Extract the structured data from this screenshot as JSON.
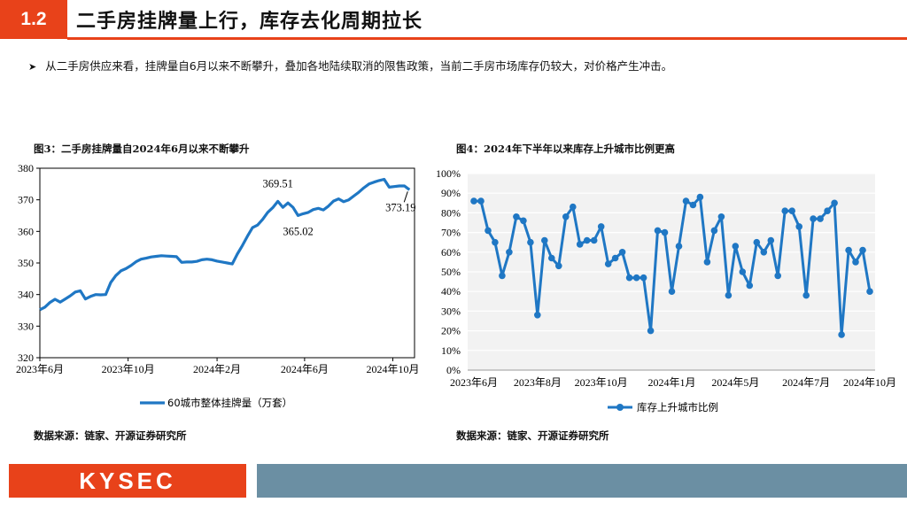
{
  "header": {
    "section_number": "1.2",
    "title": "二手房挂牌量上行，库存去化周期拉长"
  },
  "bullet": {
    "text": "从二手房供应来看，挂牌量自6月以来不断攀升，叠加各地陆续取消的限售政策，当前二手房市场库存仍较大，对价格产生冲击。"
  },
  "figure3": {
    "title": "图3：二手房挂牌量自2024年6月以来不断攀升",
    "source": "数据来源：链家、开源证券研究所"
  },
  "figure4": {
    "title": "图4：2024年下半年以来库存上升城市比例更高",
    "source": "数据来源：链家、开源证券研究所"
  },
  "footer": {
    "logo": "KYSEC"
  },
  "colors": {
    "accent": "#e8421a",
    "series": "#1f77c4",
    "footer_bar": "#6b8fa3"
  },
  "chart_data": [
    {
      "type": "line",
      "ylim": [
        320,
        380
      ],
      "yticks": [
        320,
        330,
        340,
        350,
        360,
        370,
        380
      ],
      "xlim": [
        "2023-06-01",
        "2024-10-31"
      ],
      "xticks": [
        {
          "date": "2023-06-01",
          "label": "2023年6月"
        },
        {
          "date": "2023-10-01",
          "label": "2023年10月"
        },
        {
          "date": "2024-02-01",
          "label": "2024年2月"
        },
        {
          "date": "2024-06-01",
          "label": "2024年6月"
        },
        {
          "date": "2024-10-01",
          "label": "2024年10月"
        }
      ],
      "grid": false,
      "legend_position": "bottom",
      "series": [
        {
          "name": "60城市整体挂牌量（万套）",
          "points": [
            [
              "2023-06-01",
              335.2
            ],
            [
              "2023-06-08",
              336.0
            ],
            [
              "2023-06-15",
              337.5
            ],
            [
              "2023-06-22",
              338.5
            ],
            [
              "2023-06-29",
              337.6
            ],
            [
              "2023-07-06",
              338.6
            ],
            [
              "2023-07-13",
              339.6
            ],
            [
              "2023-07-20",
              340.8
            ],
            [
              "2023-07-27",
              341.2
            ],
            [
              "2023-08-03",
              338.6
            ],
            [
              "2023-08-10",
              339.4
            ],
            [
              "2023-08-17",
              340.0
            ],
            [
              "2023-08-24",
              339.9
            ],
            [
              "2023-08-31",
              340.0
            ],
            [
              "2023-09-07",
              343.8
            ],
            [
              "2023-09-14",
              346.0
            ],
            [
              "2023-09-21",
              347.5
            ],
            [
              "2023-09-28",
              348.2
            ],
            [
              "2023-10-05",
              349.2
            ],
            [
              "2023-10-12",
              350.4
            ],
            [
              "2023-10-19",
              351.2
            ],
            [
              "2023-10-26",
              351.5
            ],
            [
              "2023-11-02",
              351.9
            ],
            [
              "2023-11-09",
              352.1
            ],
            [
              "2023-11-16",
              352.3
            ],
            [
              "2023-11-23",
              352.2
            ],
            [
              "2023-11-30",
              352.1
            ],
            [
              "2023-12-07",
              352.0
            ],
            [
              "2023-12-14",
              350.2
            ],
            [
              "2023-12-21",
              350.3
            ],
            [
              "2023-12-28",
              350.3
            ],
            [
              "2024-01-04",
              350.5
            ],
            [
              "2024-01-11",
              351.0
            ],
            [
              "2024-01-18",
              351.2
            ],
            [
              "2024-01-25",
              351.0
            ],
            [
              "2024-02-01",
              350.6
            ],
            [
              "2024-02-08",
              350.3
            ],
            [
              "2024-02-15",
              350.0
            ],
            [
              "2024-02-22",
              349.7
            ],
            [
              "2024-02-29",
              352.8
            ],
            [
              "2024-03-07",
              355.5
            ],
            [
              "2024-03-14",
              358.5
            ],
            [
              "2024-03-21",
              361.2
            ],
            [
              "2024-03-28",
              362.0
            ],
            [
              "2024-04-04",
              363.8
            ],
            [
              "2024-04-11",
              366.0
            ],
            [
              "2024-04-18",
              367.5
            ],
            [
              "2024-04-25",
              369.51
            ],
            [
              "2024-05-02",
              367.6
            ],
            [
              "2024-05-09",
              369.0
            ],
            [
              "2024-05-16",
              367.6
            ],
            [
              "2024-05-23",
              365.02
            ],
            [
              "2024-05-30",
              365.6
            ],
            [
              "2024-06-06",
              366.0
            ],
            [
              "2024-06-13",
              366.9
            ],
            [
              "2024-06-20",
              367.3
            ],
            [
              "2024-06-27",
              366.8
            ],
            [
              "2024-07-04",
              368.0
            ],
            [
              "2024-07-11",
              369.6
            ],
            [
              "2024-07-18",
              370.3
            ],
            [
              "2024-07-25",
              369.4
            ],
            [
              "2024-08-01",
              370.0
            ],
            [
              "2024-08-08",
              371.2
            ],
            [
              "2024-08-15",
              372.4
            ],
            [
              "2024-08-22",
              373.8
            ],
            [
              "2024-08-29",
              375.0
            ],
            [
              "2024-09-05",
              375.6
            ],
            [
              "2024-09-12",
              376.1
            ],
            [
              "2024-09-19",
              376.5
            ],
            [
              "2024-09-26",
              374.0
            ],
            [
              "2024-10-03",
              374.2
            ],
            [
              "2024-10-10",
              374.4
            ],
            [
              "2024-10-17",
              374.4
            ],
            [
              "2024-10-24",
              373.19
            ]
          ]
        }
      ],
      "annotations": [
        {
          "date": "2024-04-25",
          "value": 369.51,
          "label": "369.51"
        },
        {
          "date": "2024-05-23",
          "value": 365.02,
          "label": "365.02"
        },
        {
          "date": "2024-10-24",
          "value": 373.19,
          "label": "373.19"
        }
      ]
    },
    {
      "type": "line",
      "ylim": [
        0,
        100
      ],
      "yticks": [
        "0%",
        "10%",
        "20%",
        "30%",
        "40%",
        "50%",
        "60%",
        "70%",
        "80%",
        "90%",
        "100%"
      ],
      "xticks": [
        {
          "index": 0,
          "label": "2023年6月"
        },
        {
          "index": 9,
          "label": "2023年8月"
        },
        {
          "index": 18,
          "label": "2023年10月"
        },
        {
          "index": 28,
          "label": "2024年1月"
        },
        {
          "index": 37,
          "label": "2024年5月"
        },
        {
          "index": 47,
          "label": "2024年7月"
        },
        {
          "index": 56,
          "label": "2024年10月"
        }
      ],
      "grid": true,
      "legend_position": "bottom",
      "series": [
        {
          "name": "库存上升城市比例",
          "marker": "circle",
          "values": [
            86,
            86,
            71,
            65,
            48,
            60,
            78,
            76,
            65,
            28,
            66,
            57,
            53,
            78,
            83,
            64,
            66,
            66,
            73,
            54,
            57,
            60,
            47,
            47,
            47,
            20,
            71,
            70,
            40,
            63,
            86,
            84,
            88,
            55,
            71,
            78,
            38,
            63,
            50,
            43,
            65,
            60,
            66,
            48,
            81,
            81,
            73,
            38,
            77,
            77,
            81,
            85,
            18,
            61,
            55,
            61,
            40
          ]
        }
      ]
    }
  ]
}
